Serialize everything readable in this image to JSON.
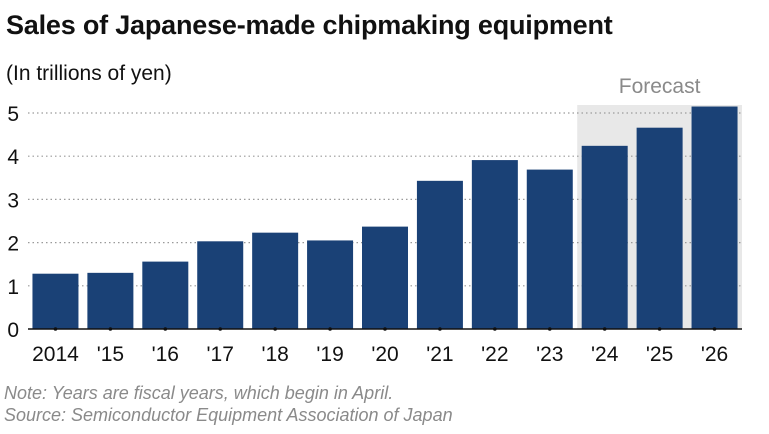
{
  "header": {
    "title": "Sales of Japanese-made chipmaking equipment",
    "subtitle": "(In trillions of yen)"
  },
  "chart_data": {
    "type": "bar",
    "title": "Sales of Japanese-made chipmaking equipment",
    "ylabel": "(In trillions of yen)",
    "xlabel": "",
    "categories": [
      "2014",
      "'15",
      "'16",
      "'17",
      "'18",
      "'19",
      "'20",
      "'21",
      "'22",
      "'23",
      "'24",
      "'25",
      "'26"
    ],
    "values": [
      1.28,
      1.3,
      1.56,
      2.03,
      2.23,
      2.05,
      2.37,
      3.43,
      3.91,
      3.69,
      4.24,
      4.66,
      5.15
    ],
    "ylim": [
      0,
      5
    ],
    "yticks": [
      0,
      1,
      2,
      3,
      4,
      5
    ],
    "grid": "horizontal dotted",
    "forecast_label": "Forecast",
    "forecast_start_index": 10,
    "colors": {
      "bar": "#1a4176",
      "forecast_band": "#e8e8e8",
      "forecast_text": "#8a8a8a",
      "grid": "#9a9a9a"
    }
  },
  "footer": {
    "note": "Note: Years are fiscal years, which begin in April.",
    "source": "Source: Semiconductor Equipment Association of Japan"
  }
}
